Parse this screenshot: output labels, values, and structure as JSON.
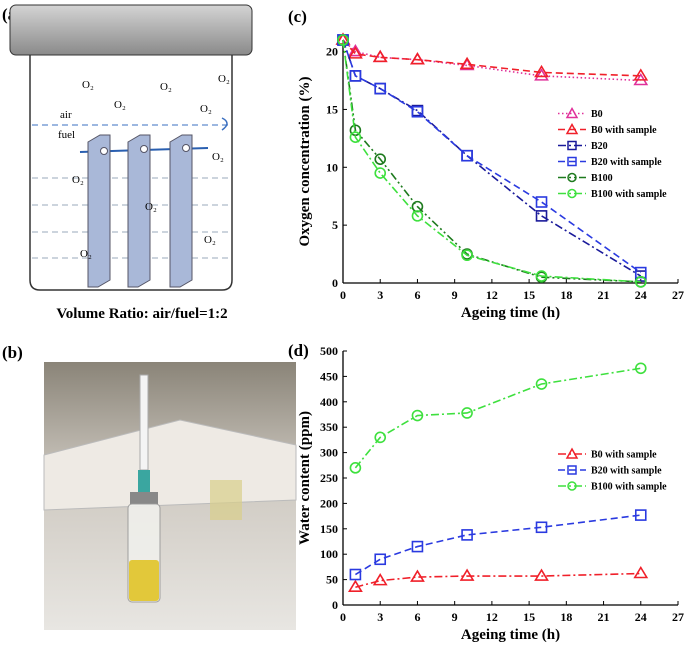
{
  "panels": {
    "a": "(a)",
    "b": "(b)"
  },
  "diagram": {
    "gas": "O₂",
    "air": "air",
    "fuel": "fuel",
    "caption": "Volume Ratio: air/fuel=1:2"
  },
  "chart_data": [
    {
      "type": "line",
      "panel": "(c)",
      "xlabel": "Ageing time (h)",
      "ylabel": "Oxygen concentration (%)",
      "x": [
        0,
        1,
        3,
        6,
        10,
        16,
        24
      ],
      "xlim": [
        0,
        27
      ],
      "xticks": [
        0,
        3,
        6,
        9,
        12,
        15,
        18,
        21,
        24,
        27
      ],
      "ylim": [
        0,
        21
      ],
      "yticks": [
        0,
        5,
        10,
        15,
        20
      ],
      "legend": "right",
      "series": [
        {
          "name": "B0",
          "color": "#e0309a",
          "marker": "triangle",
          "dash": "dotted",
          "values": [
            21,
            20.0,
            19.5,
            19.3,
            18.8,
            17.9,
            17.5
          ]
        },
        {
          "name": "B0 with sample",
          "color": "#f0202a",
          "marker": "triangle",
          "dash": "dashed",
          "values": [
            21,
            19.8,
            19.5,
            19.3,
            18.9,
            18.2,
            17.9
          ]
        },
        {
          "name": "B20",
          "color": "#1a1a9a",
          "marker": "square",
          "dash": "dash-dot",
          "values": [
            21,
            17.9,
            16.8,
            14.9,
            11.0,
            5.8,
            0.6
          ]
        },
        {
          "name": "B20 with sample",
          "color": "#2a3ae0",
          "marker": "square",
          "dash": "dashed",
          "values": [
            21,
            17.9,
            16.8,
            14.8,
            11.0,
            7.0,
            0.9
          ]
        },
        {
          "name": "B100",
          "color": "#1e7a1e",
          "marker": "circle",
          "dash": "dash-dot-dot",
          "values": [
            21,
            13.2,
            10.7,
            6.6,
            2.5,
            0.5,
            0.1
          ]
        },
        {
          "name": "B100 with sample",
          "color": "#3ee03e",
          "marker": "circle",
          "dash": "dash-dot",
          "values": [
            21,
            12.6,
            9.5,
            5.8,
            2.4,
            0.6,
            0.1
          ]
        }
      ]
    },
    {
      "type": "line",
      "panel": "(d)",
      "xlabel": "Ageing time (h)",
      "ylabel": "Water content (ppm)",
      "x": [
        1,
        3,
        6,
        10,
        16,
        24
      ],
      "xlim": [
        0,
        27
      ],
      "xticks": [
        0,
        3,
        6,
        9,
        12,
        15,
        18,
        21,
        24,
        27
      ],
      "ylim": [
        0,
        500
      ],
      "yticks": [
        0,
        50,
        100,
        150,
        200,
        250,
        300,
        350,
        400,
        450,
        500
      ],
      "legend": "right",
      "series": [
        {
          "name": "B0 with sample",
          "color": "#f0202a",
          "marker": "triangle",
          "dash": "dash-dot",
          "values": [
            35,
            48,
            55,
            57,
            57,
            62
          ]
        },
        {
          "name": "B20 with sample",
          "color": "#2a3ae0",
          "marker": "square",
          "dash": "dashed",
          "values": [
            60,
            90,
            115,
            138,
            153,
            177
          ]
        },
        {
          "name": "B100 with sample",
          "color": "#3ee03e",
          "marker": "circle",
          "dash": "dash-dot",
          "values": [
            270,
            330,
            373,
            378,
            435,
            466
          ]
        }
      ]
    }
  ]
}
